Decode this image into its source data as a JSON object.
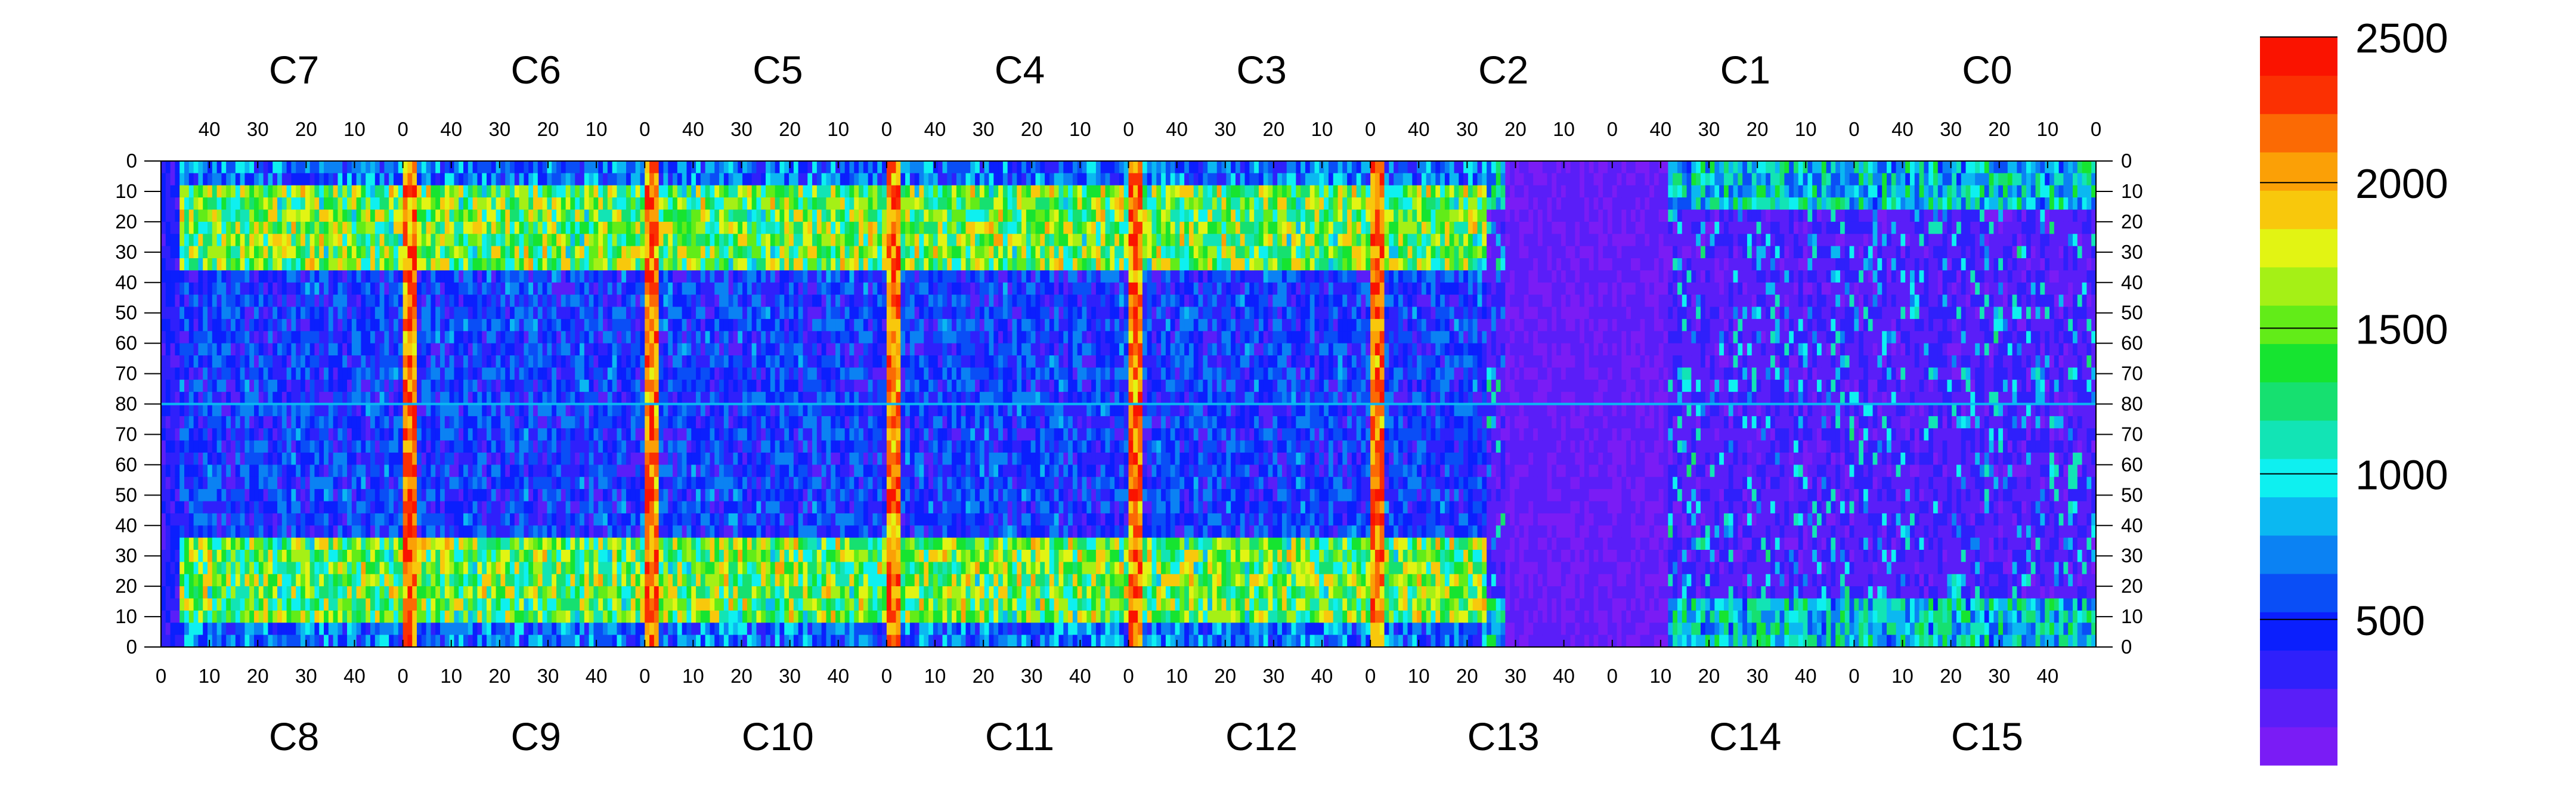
{
  "chart_data": {
    "type": "heatmap",
    "description_free": true,
    "top_chip_labels": [
      "C7",
      "C6",
      "C5",
      "C4",
      "C3",
      "C2",
      "C1",
      "C0"
    ],
    "bottom_chip_labels": [
      "C8",
      "C9",
      "C10",
      "C11",
      "C12",
      "C13",
      "C14",
      "C15"
    ],
    "top_tick_labels": [
      "40",
      "30",
      "20",
      "10",
      "0"
    ],
    "bottom_tick_labels": [
      "0",
      "10",
      "20",
      "30",
      "40"
    ],
    "left_y_tick_labels": [
      "0",
      "10",
      "20",
      "30",
      "40",
      "50",
      "60",
      "70",
      "80",
      "70",
      "60",
      "50",
      "40",
      "30",
      "20",
      "10",
      "0"
    ],
    "right_y_tick_labels": [
      "0",
      "10",
      "20",
      "30",
      "40",
      "50",
      "60",
      "70",
      "80",
      "70",
      "60",
      "50",
      "40",
      "30",
      "20",
      "10",
      "0"
    ],
    "top_first_tick_extra": "40",
    "color_scale": {
      "min": 0,
      "max": 2500,
      "tick_labels": [
        "500",
        "1000",
        "1500",
        "2000",
        "2500"
      ],
      "tick_values": [
        500,
        1000,
        1500,
        2000,
        2500
      ],
      "colors": [
        "#7a1cf5",
        "#5a1ef8",
        "#2f20fb",
        "#0b1ffd",
        "#0a4ef6",
        "#0b82f3",
        "#0bb8f1",
        "#0ef0f0",
        "#12e4b5",
        "#16e070",
        "#16e430",
        "#62ec18",
        "#a5f016",
        "#e2f413",
        "#f8c80c",
        "#fba006",
        "#fb6a04",
        "#fb3002",
        "#fa1300"
      ]
    },
    "xlim_per_chip": [
      0,
      50
    ],
    "ylim_per_half": [
      0,
      80
    ],
    "grid": false,
    "legend": "colorbar-right"
  }
}
